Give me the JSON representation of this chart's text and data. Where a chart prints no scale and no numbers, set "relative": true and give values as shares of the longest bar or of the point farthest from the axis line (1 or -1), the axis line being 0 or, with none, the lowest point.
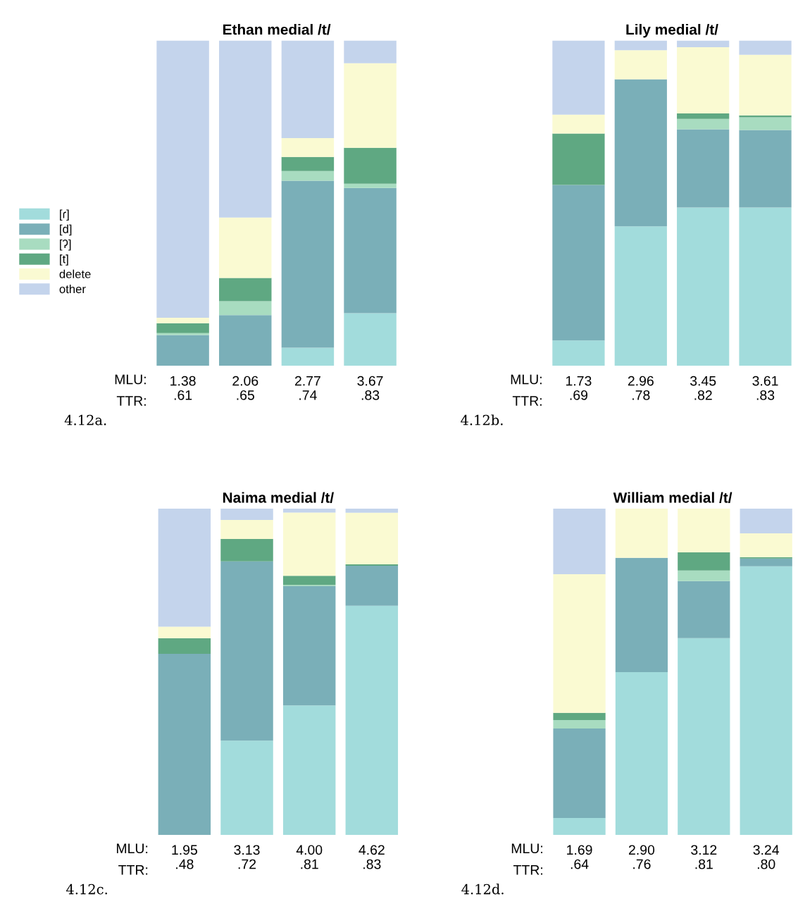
{
  "chart_data": [
    {
      "type": "bar",
      "stacked": true,
      "relative": true,
      "title": "Ethan medial /t/",
      "categories": [
        "1.38\n.61",
        "2.06\n.65",
        "2.77\n.74",
        "3.67\n.83"
      ],
      "legend": "left",
      "annotations": [
        "MLU:",
        "TTR:",
        "4.12a."
      ],
      "series": [
        {
          "name": "[ɾ]",
          "color": "#a2dcdc",
          "values": [
            0,
            0,
            0.056,
            0.162
          ]
        },
        {
          "name": "[d]",
          "color": "#7aafb8",
          "values": [
            0.095,
            0.156,
            0.513,
            0.385
          ]
        },
        {
          "name": "[ʔ]",
          "color": "#a8dcc0",
          "values": [
            0.006,
            0.043,
            0.03,
            0.013
          ]
        },
        {
          "name": "[t]",
          "color": "#5fa882",
          "values": [
            0.03,
            0.071,
            0.043,
            0.11
          ]
        },
        {
          "name": "delete",
          "color": "#fafad2",
          "values": [
            0.017,
            0.186,
            0.058,
            0.26
          ]
        },
        {
          "name": "other",
          "color": "#c4d4ec",
          "values": [
            0.852,
            0.544,
            0.3,
            0.07
          ]
        }
      ]
    },
    {
      "type": "bar",
      "stacked": true,
      "relative": true,
      "title": "Lily medial /t/",
      "categories": [
        "1.73\n.69",
        "2.96\n.78",
        "3.45\n.82",
        "3.61\n.83"
      ],
      "annotations": [
        "MLU:",
        "TTR:",
        "4.12b."
      ],
      "series": [
        {
          "color": "#a2dcdc",
          "values": [
            0.078,
            0.429,
            0.487,
            0.487
          ]
        },
        {
          "color": "#7aafb8",
          "values": [
            0.478,
            0.452,
            0.24,
            0.238
          ]
        },
        {
          "color": "#a8dcc0",
          "values": [
            0,
            0,
            0.032,
            0.039
          ]
        },
        {
          "color": "#5fa882",
          "values": [
            0.158,
            0,
            0.017,
            0.006
          ]
        },
        {
          "color": "#fafad2",
          "values": [
            0.058,
            0.089,
            0.203,
            0.186
          ]
        },
        {
          "color": "#c4d4ec",
          "values": [
            0.228,
            0.03,
            0.021,
            0.044
          ]
        }
      ]
    },
    {
      "type": "bar",
      "stacked": true,
      "relative": true,
      "title": "Naima medial /t/",
      "categories": [
        "1.95\n.48",
        "3.13\n.72",
        "4.00\n.81",
        "4.62\n.83"
      ],
      "annotations": [
        "MLU:",
        "TTR:",
        "4.12c."
      ],
      "series": [
        {
          "color": "#a2dcdc",
          "values": [
            0,
            0.289,
            0.397,
            0.702
          ]
        },
        {
          "color": "#7aafb8",
          "values": [
            0.555,
            0.549,
            0.365,
            0.123
          ]
        },
        {
          "color": "#a8dcc0",
          "values": [
            0,
            0,
            0.004,
            0
          ]
        },
        {
          "color": "#5fa882",
          "values": [
            0.048,
            0.069,
            0.028,
            0.004
          ]
        },
        {
          "color": "#fafad2",
          "values": [
            0.035,
            0.058,
            0.194,
            0.158
          ]
        },
        {
          "color": "#c4d4ec",
          "values": [
            0.362,
            0.035,
            0.012,
            0.013
          ]
        }
      ]
    },
    {
      "type": "bar",
      "stacked": true,
      "relative": true,
      "title": "William medial /t/",
      "categories": [
        "1.69\n.64",
        "2.90\n.76",
        "3.12\n.81",
        "3.24\n.80"
      ],
      "annotations": [
        "MLU:",
        "TTR:",
        "4.12d."
      ],
      "series": [
        {
          "color": "#a2dcdc",
          "values": [
            0.052,
            0.499,
            0.603,
            0.823
          ]
        },
        {
          "color": "#7aafb8",
          "values": [
            0.274,
            0.35,
            0.175,
            0.024
          ]
        },
        {
          "color": "#a8dcc0",
          "values": [
            0.026,
            0,
            0.032,
            0
          ]
        },
        {
          "color": "#5fa882",
          "values": [
            0.022,
            0,
            0.056,
            0.004
          ]
        },
        {
          "color": "#fafad2",
          "values": [
            0.425,
            0.151,
            0.134,
            0.073
          ]
        },
        {
          "color": "#c4d4ec",
          "values": [
            0.201,
            0,
            0,
            0.076
          ]
        }
      ]
    }
  ]
}
